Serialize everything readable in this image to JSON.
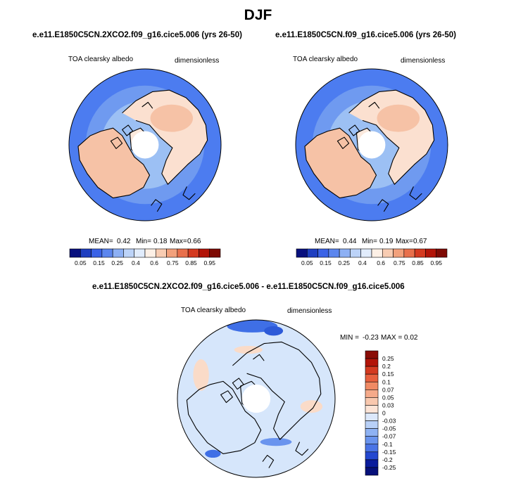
{
  "page_title": "DJF",
  "colors": {
    "ocean_low": "#4c7cf0",
    "ocean_mid": "#9cc0f4",
    "land_high": "#f6c2a6",
    "land_mid": "#fbe0d0",
    "pole_hole": "#ffffff",
    "coast": "#000000",
    "diff_base": "#d6e6fb",
    "diff_neg": "#3f6fe6",
    "diff_pos": "#fadbc8"
  },
  "chart_data": [
    {
      "type": "heatmap",
      "projection": "north-polar-stereographic",
      "case_title": "e.e11.E1850C5CN.2XCO2.f09_g16.cice5.006 (yrs 26-50)",
      "variable_label": "TOA clearsky albedo",
      "units_label": "dimensionless",
      "stats": {
        "mean_label": "MEAN=",
        "mean": "0.42",
        "min_label": "Min=",
        "min": "0.18",
        "max_label": "Max=",
        "max": "0.66"
      },
      "colorbar": {
        "orientation": "horizontal",
        "levels": [
          "0.05",
          "0.15",
          "0.25",
          "0.4",
          "0.6",
          "0.75",
          "0.85",
          "0.95"
        ],
        "colors": [
          "#08107e",
          "#1f3fc0",
          "#3b63e6",
          "#5c86ee",
          "#8db0f4",
          "#bcd3f8",
          "#e1ecfc",
          "#fdf0e6",
          "#f8ccb2",
          "#f2a17c",
          "#e8704c",
          "#d43a20",
          "#b21408",
          "#7e0a04"
        ]
      }
    },
    {
      "type": "heatmap",
      "projection": "north-polar-stereographic",
      "case_title": "e.e11.E1850C5CN.f09_g16.cice5.006 (yrs 26-50)",
      "variable_label": "TOA clearsky albedo",
      "units_label": "dimensionless",
      "stats": {
        "mean_label": "MEAN=",
        "mean": "0.44",
        "min_label": "Min=",
        "min": "0.19",
        "max_label": "Max=",
        "max": "0.67"
      },
      "colorbar": {
        "orientation": "horizontal",
        "levels": [
          "0.05",
          "0.15",
          "0.25",
          "0.4",
          "0.6",
          "0.75",
          "0.85",
          "0.95"
        ],
        "colors": [
          "#08107e",
          "#1f3fc0",
          "#3b63e6",
          "#5c86ee",
          "#8db0f4",
          "#bcd3f8",
          "#e1ecfc",
          "#fdf0e6",
          "#f8ccb2",
          "#f2a17c",
          "#e8704c",
          "#d43a20",
          "#b21408",
          "#7e0a04"
        ]
      }
    },
    {
      "type": "heatmap",
      "projection": "north-polar-stereographic",
      "case_title": "e.e11.E1850C5CN.2XCO2.f09_g16.cice5.006 - e.e11.E1850C5CN.f09_g16.cice5.006",
      "variable_label": "TOA clearsky albedo",
      "units_label": "dimensionless",
      "stats": {
        "min_label": "MIN =",
        "min": "-0.23",
        "max_label": "MAX =",
        "max": "0.02"
      },
      "colorbar": {
        "orientation": "vertical",
        "levels": [
          "0.25",
          "0.2",
          "0.15",
          "0.1",
          "0.07",
          "0.05",
          "0.03",
          "0",
          "-0.03",
          "-0.05",
          "-0.07",
          "-0.1",
          "-0.15",
          "-0.2",
          "-0.25"
        ],
        "colors": [
          "#8a0c06",
          "#b21408",
          "#d43a20",
          "#e8603e",
          "#f08a64",
          "#f5aa8a",
          "#f9c8ae",
          "#fde4d6",
          "#dce8fb",
          "#b8d0f7",
          "#8eb2f3",
          "#6a94ee",
          "#4a74e6",
          "#2448d0",
          "#0a1c9c",
          "#06107a"
        ]
      }
    }
  ]
}
